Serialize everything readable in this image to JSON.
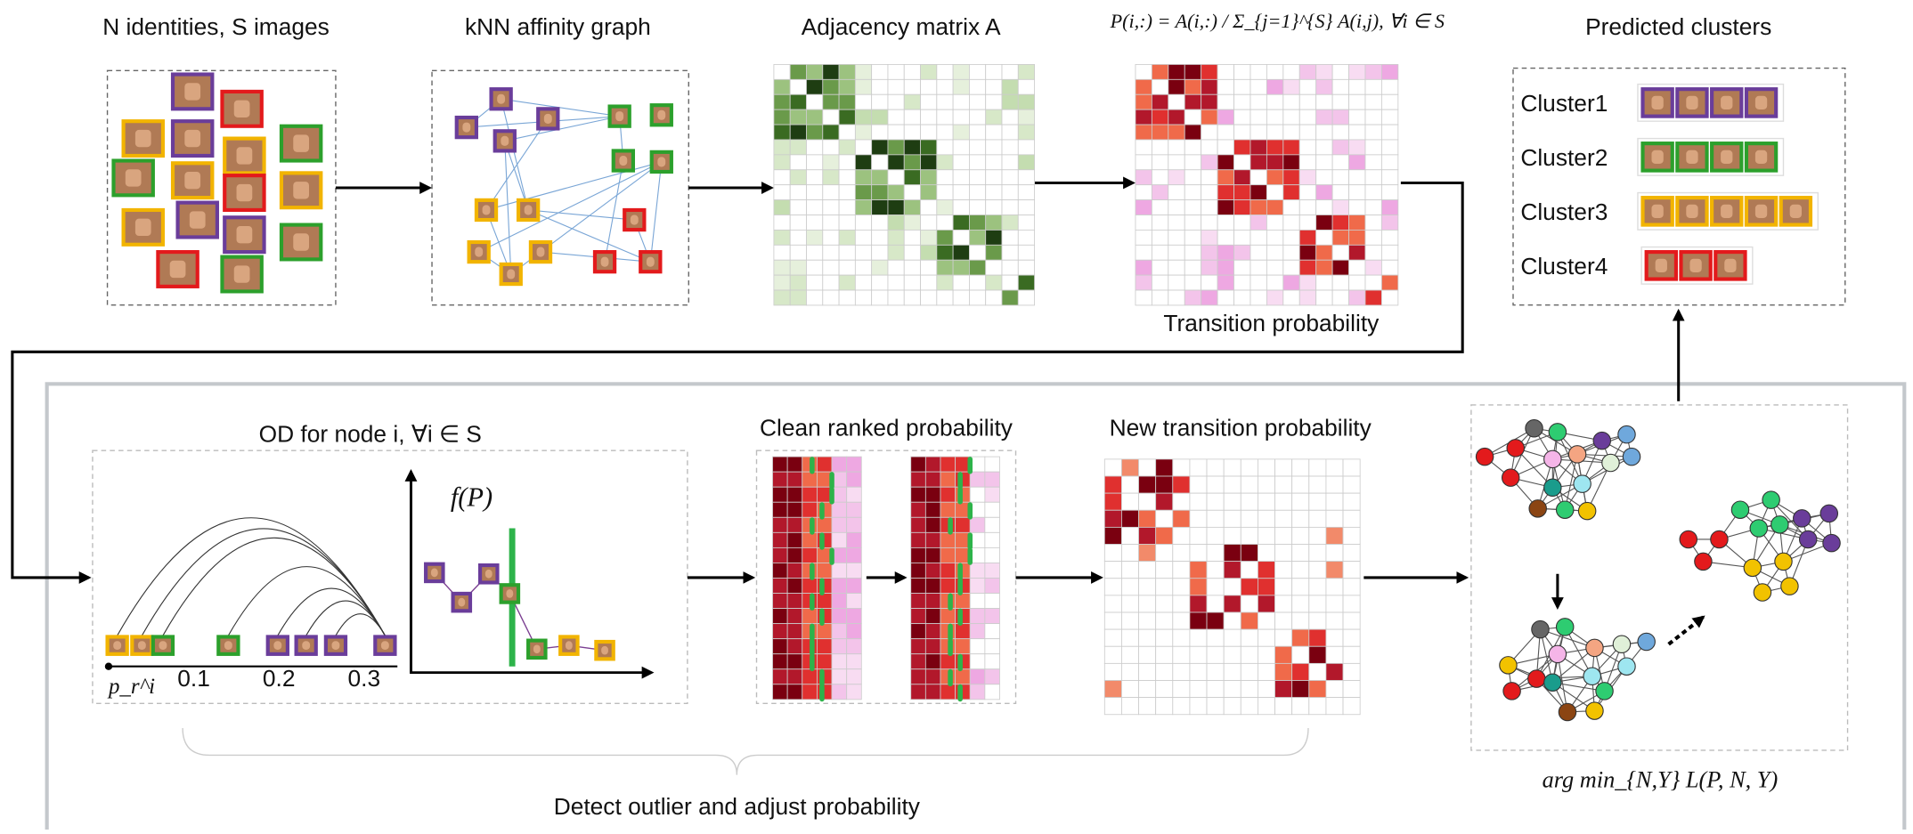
{
  "header": {
    "faces_title": "N identities, S images",
    "graph_title": "kNN affinity graph",
    "adjacency_title": "Adjacency matrix A",
    "transition_formula": "P(i,:) = A(i,:) / Σ_{j=1}^{S} A(i,j), ∀i ∈ S",
    "clusters_title": "Predicted clusters",
    "transition_caption": "Transition probability"
  },
  "clusters": [
    "Cluster1",
    "Cluster2",
    "Cluster3",
    "Cluster4"
  ],
  "od": {
    "title": "OD for node i, ∀i ∈ S",
    "y_label": "f(P)",
    "x_origin": "p_r^i",
    "x_ticks": [
      "0.1",
      "0.2",
      "0.3"
    ]
  },
  "clean_title": "Clean ranked probability",
  "new_title": "New transition probability",
  "objective": "arg min_{N,Y} L(P, N, Y)",
  "bracket_label": "Detect outlier and adjust probability"
}
